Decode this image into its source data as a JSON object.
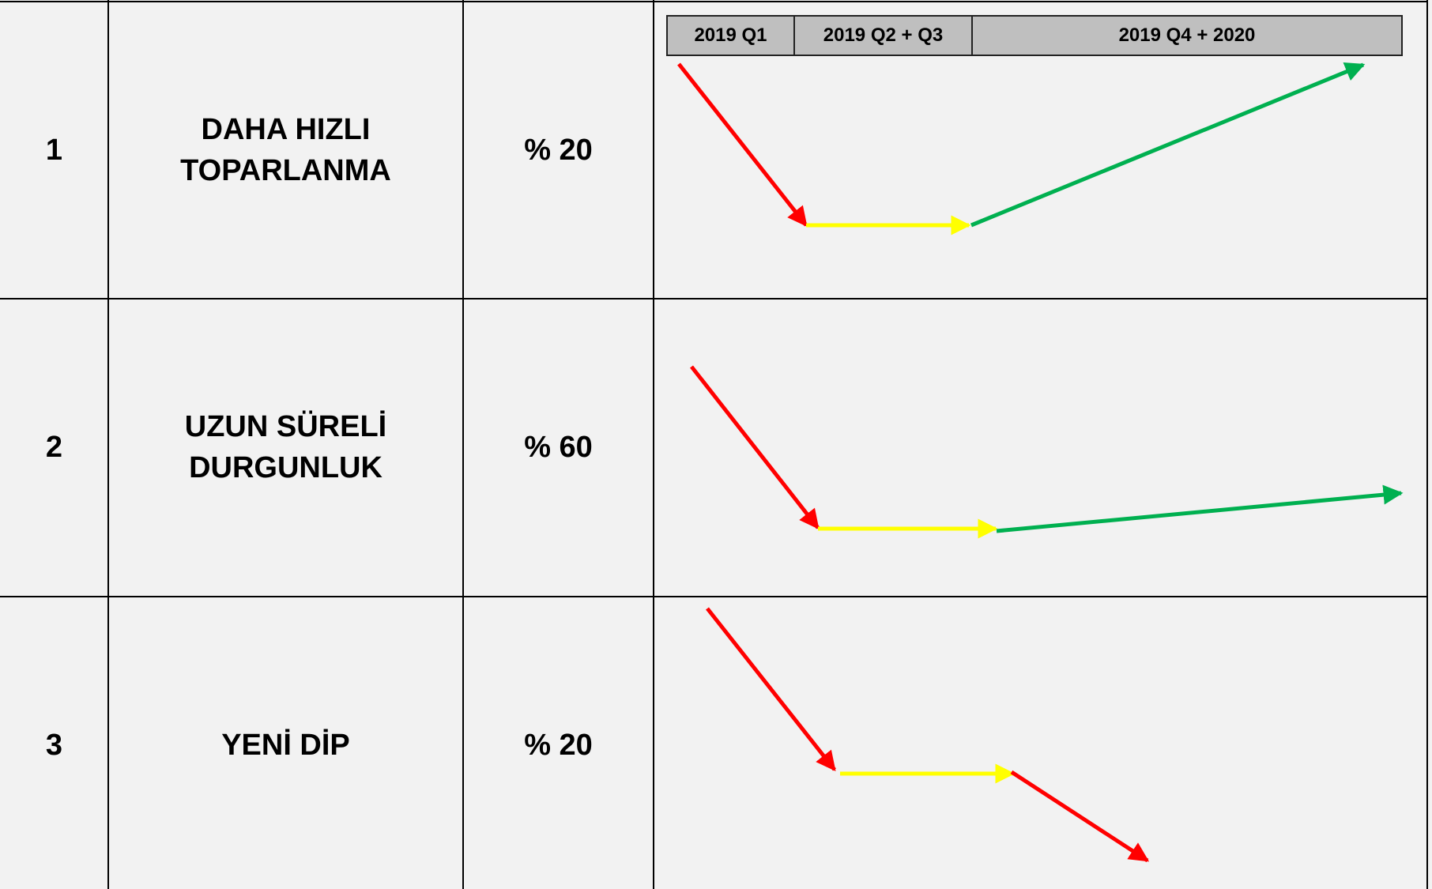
{
  "timeline": [
    "2019 Q1",
    "2019 Q2 + Q3",
    "2019 Q4 + 2020"
  ],
  "rows": [
    {
      "number": "1",
      "scenario": [
        "DAHA HIZLI",
        "TOPARLANMA"
      ],
      "probability": "% 20"
    },
    {
      "number": "2",
      "scenario": [
        "UZUN SÜRELİ",
        "DURGUNLUK"
      ],
      "probability": "% 60"
    },
    {
      "number": "3",
      "scenario": [
        "YENİ DİP"
      ],
      "probability": "% 20"
    }
  ]
}
